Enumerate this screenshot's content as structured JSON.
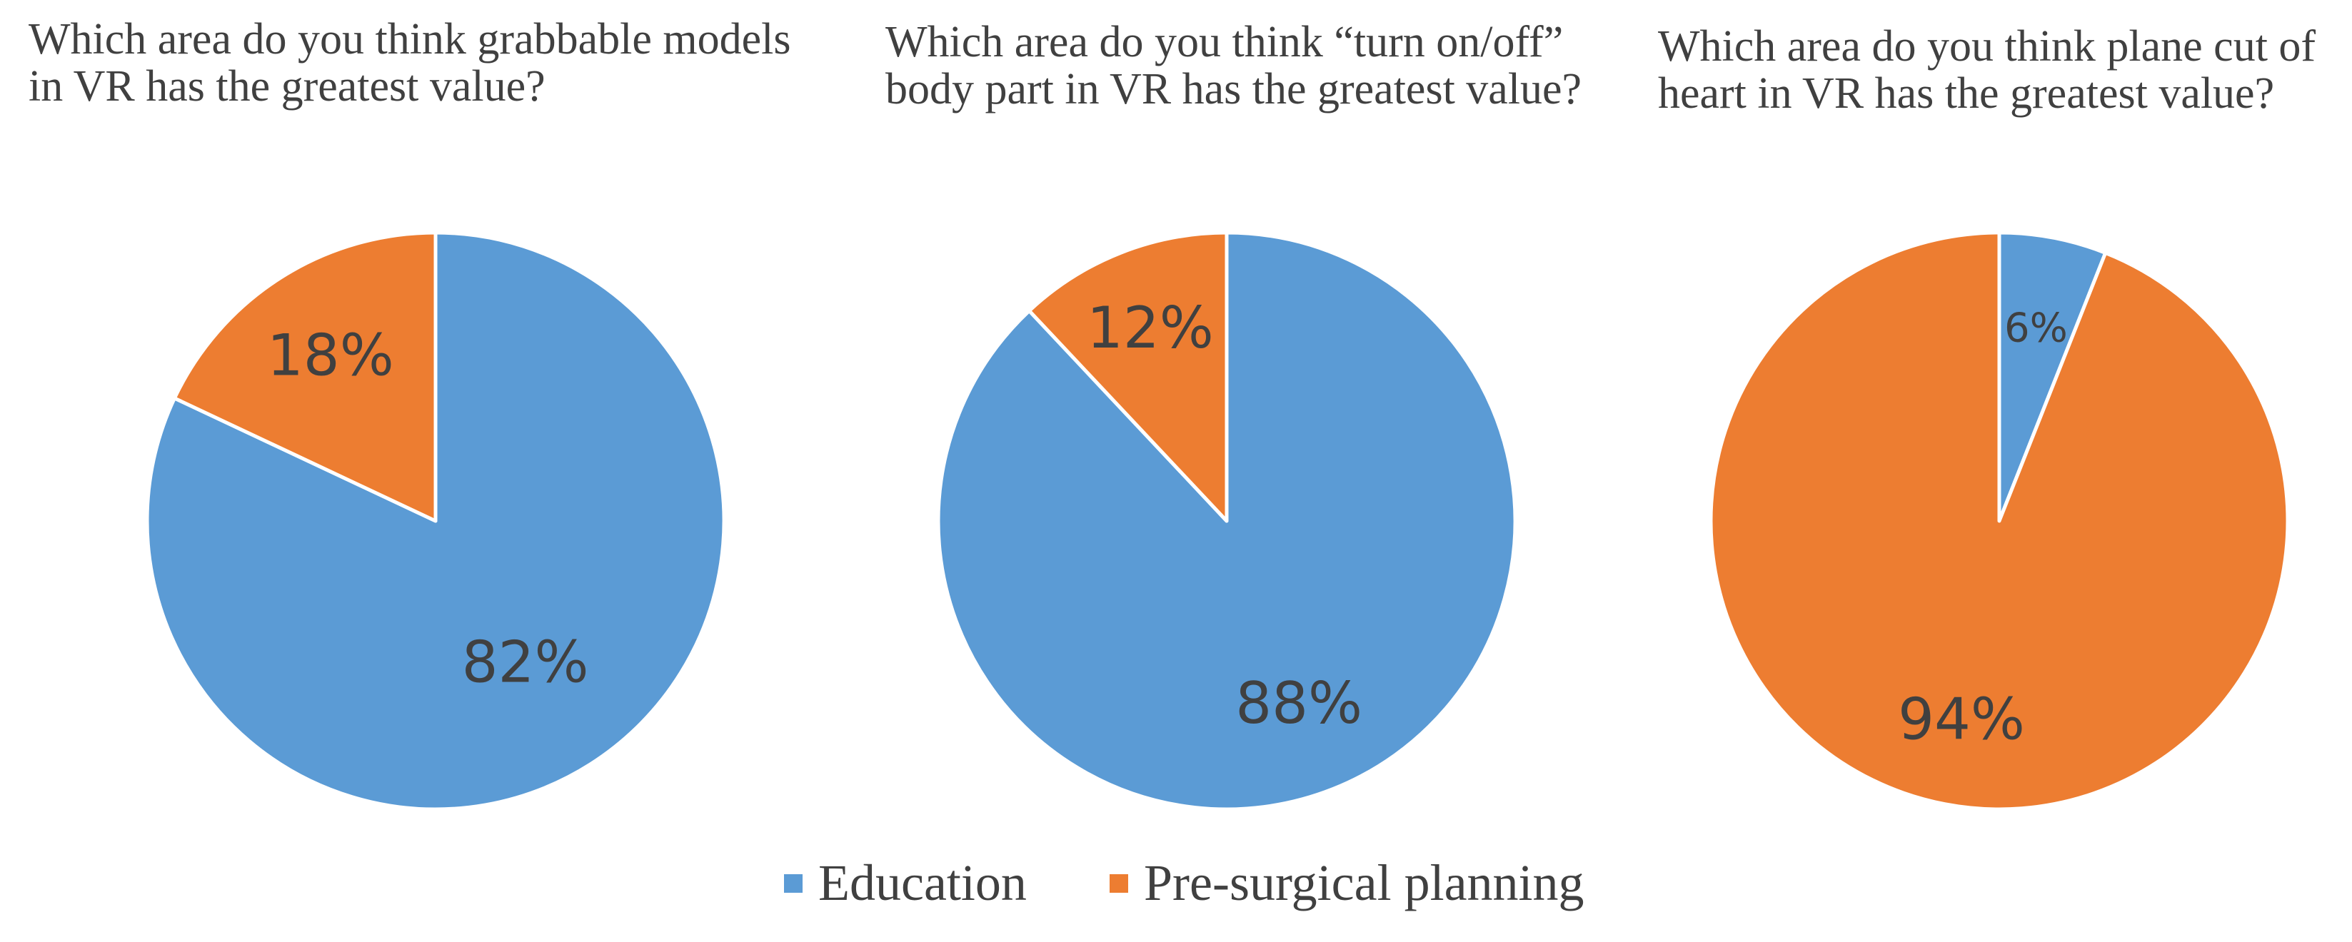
{
  "chart_data": [
    {
      "type": "pie",
      "title": "Which area do you think grabbable models in VR has the greatest value?",
      "categories": [
        "Education",
        "Pre-surgical planning"
      ],
      "values": [
        82,
        18
      ],
      "labels": [
        "82%",
        "18%"
      ],
      "colors": [
        "#5B9BD5",
        "#ED7D31"
      ]
    },
    {
      "type": "pie",
      "title": "Which area do you think “turn on/off” body part in VR has the greatest value?",
      "categories": [
        "Education",
        "Pre-surgical planning"
      ],
      "values": [
        88,
        12
      ],
      "labels": [
        "88%",
        "12%"
      ],
      "colors": [
        "#5B9BD5",
        "#ED7D31"
      ]
    },
    {
      "type": "pie",
      "title": "Which area do you think plane cut of heart in VR has the greatest value?",
      "categories": [
        "Education",
        "Pre-surgical planning"
      ],
      "values": [
        6,
        94
      ],
      "labels": [
        "6%",
        "94%"
      ],
      "colors": [
        "#5B9BD5",
        "#ED7D31"
      ]
    }
  ],
  "legend": {
    "placement": "bottom",
    "items": [
      {
        "label": "Education",
        "color": "#5B9BD5"
      },
      {
        "label": "Pre-surgical planning",
        "color": "#ED7D31"
      }
    ]
  }
}
